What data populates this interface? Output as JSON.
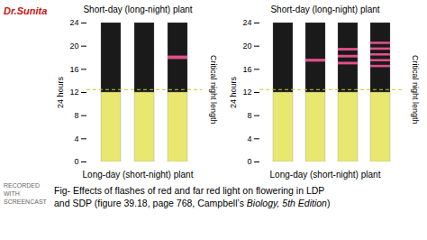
{
  "chart_data": [
    {
      "type": "bar",
      "stacked": true,
      "title": "Short-day (long-night) plant",
      "xlabel": "Long-day (short-night) plant",
      "ylabel": "24 hours",
      "categories": [
        null,
        null,
        null
      ],
      "series": [
        {
          "color": "#e8e870",
          "values": [
            12,
            12,
            12
          ]
        },
        {
          "color": "#1a1a1a",
          "values": [
            12,
            12,
            12
          ]
        }
      ],
      "bands": {
        "color": "#e0508a",
        "values": [
          [],
          [],
          [
            {
              "y": 18.0,
              "h": 0.6
            }
          ]
        ]
      },
      "annotations": [
        {
          "type": "hline",
          "y": 12.5,
          "label": "Critical night length",
          "color": "#c8c820",
          "line_style": "dashed"
        }
      ],
      "ylim": [
        0,
        24
      ],
      "yticks": [
        0,
        4,
        8,
        12,
        16,
        20,
        24
      ],
      "tick_labels": "y",
      "grid": false
    },
    {
      "type": "bar",
      "stacked": true,
      "title": "Short-day (long-night) plant",
      "xlabel": "Long-day (short-night) plant",
      "ylabel": "24 hours",
      "categories": [
        null,
        null,
        null,
        null
      ],
      "series": [
        {
          "color": "#e8e870",
          "values": [
            12,
            12,
            12,
            12
          ]
        },
        {
          "color": "#1a1a1a",
          "values": [
            12,
            12,
            12,
            12
          ]
        }
      ],
      "bands": {
        "color": "#e0508a",
        "values": [
          [],
          [
            {
              "y": 17.5,
              "h": 0.5
            }
          ],
          [
            {
              "y": 17.0,
              "h": 0.45
            },
            {
              "y": 18.2,
              "h": 0.45
            },
            {
              "y": 19.4,
              "h": 0.45
            }
          ],
          [
            {
              "y": 16.5,
              "h": 0.4
            },
            {
              "y": 17.5,
              "h": 0.4
            },
            {
              "y": 18.5,
              "h": 0.4
            },
            {
              "y": 19.5,
              "h": 0.4
            },
            {
              "y": 20.5,
              "h": 0.4
            }
          ]
        ]
      },
      "annotations": [
        {
          "type": "hline",
          "y": 12.5,
          "label": "Critical night length",
          "color": "#c8c820",
          "line_style": "dashed"
        }
      ],
      "ylim": [
        0,
        24
      ],
      "yticks": [
        0,
        4,
        8,
        12,
        16,
        20,
        24
      ],
      "tick_labels": "y",
      "grid": false
    }
  ],
  "caption": [
    [
      {
        "text": "Fig- Effects of flashes of red and far red light on flowering in LDP"
      }
    ],
    [
      {
        "text": "and SDP (figure 39.18, page 768, Campbell’s "
      },
      {
        "text": "Biology, 5th Edition",
        "style": "italic"
      },
      {
        "text": ")"
      }
    ]
  ],
  "annotations": [
    {
      "text": "Dr.Sunita",
      "color": "#cc1111"
    },
    {
      "text": "RECORDED WITH",
      "color": "#666666"
    },
    {
      "text": "SCREENCAST",
      "color": "#666666"
    }
  ]
}
